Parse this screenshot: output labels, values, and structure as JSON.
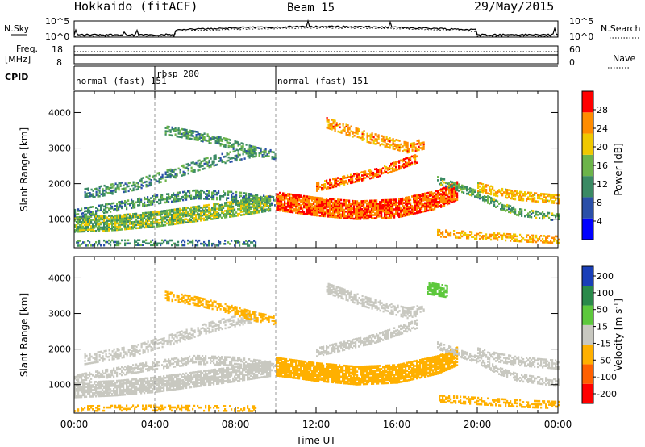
{
  "header": {
    "title": "Hokkaido (fitACF)",
    "beam": "Beam 15",
    "date": "29/May/2015"
  },
  "top_panels": {
    "nsky_label": "N.Sky",
    "nsky_ticks": [
      "10^5",
      "10^0"
    ],
    "nsearch_label": "N.Search",
    "nsearch_ticks": [
      "10^5",
      "10^0"
    ],
    "freq_label": "Freq.",
    "freq_unit": "[MHz]",
    "freq_ticks": [
      "18",
      "8"
    ],
    "nave_label": "Nave",
    "nave_ticks": [
      "60",
      "0"
    ],
    "cpid_label": "CPID",
    "cpid_segments": [
      {
        "label": "normal (fast) 151",
        "start": 0.0,
        "end": 4.0
      },
      {
        "label": "rbsp 200",
        "start": 4.0,
        "end": 10.0
      },
      {
        "label": "normal (fast) 151",
        "start": 10.0,
        "end": 24.0
      }
    ]
  },
  "chart_data": [
    {
      "type": "heatmap",
      "title": "",
      "xlabel": "",
      "ylabel": "Slant Range [km]",
      "xlim": [
        0,
        24
      ],
      "ylim": [
        200,
        4600
      ],
      "x_ticks": [
        "00:00",
        "04:00",
        "08:00",
        "12:00",
        "16:00",
        "20:00",
        "00:00"
      ],
      "y_ticks": [
        1000,
        2000,
        3000,
        4000
      ],
      "colorbar_label": "Power [dB]",
      "colorbar_ticks": [
        4,
        8,
        12,
        16,
        20,
        24,
        28
      ],
      "colorbar_range": [
        0,
        32
      ],
      "colors": [
        "#0000ff",
        "#2a4fa8",
        "#3a8a64",
        "#6cb44a",
        "#f0c800",
        "#ff8c00",
        "#ff0000"
      ],
      "bands": [
        {
          "t": [
            0.0,
            2.0,
            4.0,
            6.0,
            8.0,
            9.7
          ],
          "r": [
            850,
            900,
            1000,
            1150,
            1300,
            1450
          ],
          "w": 220,
          "v": 16,
          "d": 0.8
        },
        {
          "t": [
            0.0,
            2.0,
            4.0,
            6.0,
            8.0,
            10.0
          ],
          "r": [
            1150,
            1350,
            1550,
            1700,
            1650,
            1500
          ],
          "w": 130,
          "v": 12,
          "d": 0.55
        },
        {
          "t": [
            0.5,
            3.0,
            5.0,
            7.0,
            9.0
          ],
          "r": [
            1700,
            1950,
            2300,
            2650,
            2900
          ],
          "w": 140,
          "v": 12,
          "d": 0.45
        },
        {
          "t": [
            4.5,
            6.0,
            7.5,
            9.0,
            10.0
          ],
          "r": [
            3500,
            3350,
            3150,
            2900,
            2800
          ],
          "w": 130,
          "v": 13,
          "d": 0.55
        },
        {
          "t": [
            10.0,
            12.0,
            14.0,
            16.0,
            18.0,
            19.0
          ],
          "r": [
            1500,
            1350,
            1250,
            1300,
            1550,
            1800
          ],
          "w": 260,
          "v": 27,
          "d": 0.85
        },
        {
          "t": [
            12.0,
            13.5,
            15.0,
            16.0,
            17.0
          ],
          "r": [
            1900,
            2100,
            2300,
            2500,
            2700
          ],
          "w": 120,
          "v": 26,
          "d": 0.65
        },
        {
          "t": [
            12.5,
            13.5,
            14.5,
            15.5,
            16.5,
            17.3
          ],
          "r": [
            3700,
            3500,
            3300,
            3150,
            3000,
            3100
          ],
          "w": 140,
          "v": 24,
          "d": 0.55
        },
        {
          "t": [
            18.0,
            19.0,
            20.0,
            21.0,
            22.0,
            24.0
          ],
          "r": [
            2100,
            1900,
            1700,
            1400,
            1200,
            1050
          ],
          "w": 110,
          "v": 14,
          "d": 0.55
        },
        {
          "t": [
            20.0,
            21.0,
            22.0,
            23.0,
            24.0
          ],
          "r": [
            1900,
            1750,
            1650,
            1600,
            1550
          ],
          "w": 120,
          "v": 22,
          "d": 0.6
        },
        {
          "t": [
            0.0,
            3.0,
            6.0,
            9.0
          ],
          "r": [
            320,
            340,
            330,
            320
          ],
          "w": 80,
          "v": 11,
          "d": 0.35
        },
        {
          "t": [
            18.0,
            19.5,
            21.0,
            22.5,
            24.0
          ],
          "r": [
            600,
            550,
            500,
            450,
            420
          ],
          "w": 100,
          "v": 23,
          "d": 0.5
        }
      ]
    },
    {
      "type": "heatmap",
      "title": "",
      "xlabel": "Time UT",
      "ylabel": "Slant Range [km]",
      "xlim": [
        0,
        24
      ],
      "ylim": [
        200,
        4600
      ],
      "x_ticks": [
        "00:00",
        "04:00",
        "08:00",
        "12:00",
        "16:00",
        "20:00",
        "00:00"
      ],
      "y_ticks": [
        1000,
        2000,
        3000,
        4000
      ],
      "colorbar_label": "Velocity [m s^-1]",
      "colorbar_ticks": [
        "200",
        "100",
        "50",
        "15",
        "-15",
        "-50",
        "-100",
        "-200"
      ],
      "colorbar_range": [
        -250,
        250
      ],
      "colors": [
        "#ff0000",
        "#ff6000",
        "#ffb000",
        "#c8c8c0",
        "#5dc83c",
        "#2a8a4a",
        "#1a3fb8"
      ],
      "bands": [
        {
          "t": [
            0.0,
            2.0,
            4.0,
            6.0,
            8.0,
            9.7
          ],
          "r": [
            850,
            900,
            1000,
            1150,
            1300,
            1450
          ],
          "w": 220,
          "v": 0,
          "d": 0.8
        },
        {
          "t": [
            0.0,
            2.0,
            4.0,
            6.0,
            8.0,
            10.0
          ],
          "r": [
            1150,
            1350,
            1550,
            1700,
            1650,
            1500
          ],
          "w": 130,
          "v": 0,
          "d": 0.55
        },
        {
          "t": [
            0.5,
            3.0,
            5.0,
            7.0,
            9.0
          ],
          "r": [
            1700,
            1950,
            2300,
            2650,
            2900
          ],
          "w": 140,
          "v": 0,
          "d": 0.45
        },
        {
          "t": [
            4.5,
            6.0,
            7.5,
            9.0,
            10.0
          ],
          "r": [
            3500,
            3350,
            3150,
            2900,
            2800
          ],
          "w": 130,
          "v": -30,
          "d": 0.55
        },
        {
          "t": [
            10.0,
            12.0,
            14.0,
            16.0,
            18.0,
            19.0
          ],
          "r": [
            1500,
            1350,
            1250,
            1300,
            1550,
            1800
          ],
          "w": 260,
          "v": -20,
          "d": 0.85
        },
        {
          "t": [
            12.0,
            13.5,
            15.0,
            16.0,
            17.0
          ],
          "r": [
            1900,
            2100,
            2300,
            2500,
            2700
          ],
          "w": 120,
          "v": 0,
          "d": 0.65
        },
        {
          "t": [
            12.5,
            13.5,
            14.5,
            15.5,
            16.5,
            17.3
          ],
          "r": [
            3700,
            3500,
            3300,
            3150,
            3000,
            3100
          ],
          "w": 140,
          "v": 0,
          "d": 0.55
        },
        {
          "t": [
            17.5,
            18.0,
            18.5
          ],
          "r": [
            3700,
            3650,
            3600
          ],
          "w": 160,
          "v": 30,
          "d": 0.7
        },
        {
          "t": [
            18.0,
            19.0,
            20.0,
            21.0,
            22.0,
            24.0
          ],
          "r": [
            2100,
            1900,
            1700,
            1400,
            1200,
            1050
          ],
          "w": 110,
          "v": 0,
          "d": 0.55
        },
        {
          "t": [
            20.0,
            21.0,
            22.0,
            23.0,
            24.0
          ],
          "r": [
            1900,
            1750,
            1650,
            1600,
            1550
          ],
          "w": 120,
          "v": 0,
          "d": 0.6
        },
        {
          "t": [
            0.0,
            3.0,
            6.0,
            9.0
          ],
          "r": [
            320,
            340,
            330,
            320
          ],
          "w": 80,
          "v": -40,
          "d": 0.35
        },
        {
          "t": [
            18.0,
            19.5,
            21.0,
            22.5,
            24.0
          ],
          "r": [
            600,
            550,
            500,
            450,
            420
          ],
          "w": 100,
          "v": -40,
          "d": 0.5
        }
      ]
    }
  ]
}
